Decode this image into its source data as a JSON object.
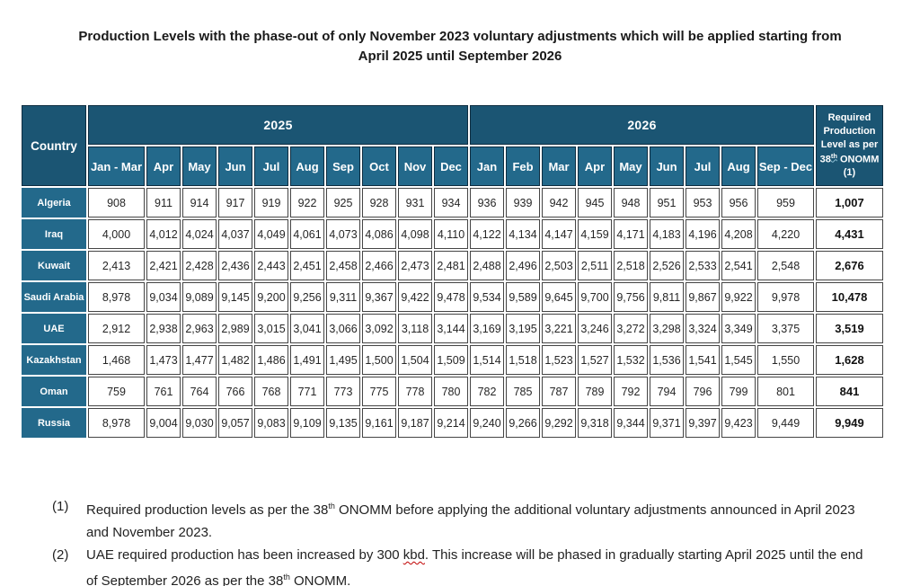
{
  "title": {
    "line1": "Production Levels with the phase-out of only November 2023 voluntary adjustments which will be applied starting from",
    "line2": "April 2025 until September 2026"
  },
  "table": {
    "country_header": "Country",
    "year_2025": "2025",
    "year_2026": "2026",
    "required_header": {
      "text_before_sup": "Required Production Level as per 38",
      "sup": "th",
      "text_after_sup": " ONOMM (1)"
    },
    "months_2025": [
      "Jan - Mar",
      "Apr",
      "May",
      "Jun",
      "Jul",
      "Aug",
      "Sep",
      "Oct",
      "Nov",
      "Dec"
    ],
    "months_2026": [
      "Jan",
      "Feb",
      "Mar",
      "Apr",
      "May",
      "Jun",
      "Jul",
      "Aug",
      "Sep - Dec"
    ],
    "rows": [
      {
        "country": "Algeria",
        "values_2025": [
          "908",
          "911",
          "914",
          "917",
          "919",
          "922",
          "925",
          "928",
          "931",
          "934"
        ],
        "values_2026": [
          "936",
          "939",
          "942",
          "945",
          "948",
          "951",
          "953",
          "956",
          "959"
        ],
        "required": "1,007"
      },
      {
        "country": "Iraq",
        "values_2025": [
          "4,000",
          "4,012",
          "4,024",
          "4,037",
          "4,049",
          "4,061",
          "4,073",
          "4,086",
          "4,098",
          "4,110"
        ],
        "values_2026": [
          "4,122",
          "4,134",
          "4,147",
          "4,159",
          "4,171",
          "4,183",
          "4,196",
          "4,208",
          "4,220"
        ],
        "required": "4,431"
      },
      {
        "country": "Kuwait",
        "values_2025": [
          "2,413",
          "2,421",
          "2,428",
          "2,436",
          "2,443",
          "2,451",
          "2,458",
          "2,466",
          "2,473",
          "2,481"
        ],
        "values_2026": [
          "2,488",
          "2,496",
          "2,503",
          "2,511",
          "2,518",
          "2,526",
          "2,533",
          "2,541",
          "2,548"
        ],
        "required": "2,676"
      },
      {
        "country": "Saudi Arabia",
        "values_2025": [
          "8,978",
          "9,034",
          "9,089",
          "9,145",
          "9,200",
          "9,256",
          "9,311",
          "9,367",
          "9,422",
          "9,478"
        ],
        "values_2026": [
          "9,534",
          "9,589",
          "9,645",
          "9,700",
          "9,756",
          "9,811",
          "9,867",
          "9,922",
          "9,978"
        ],
        "required": "10,478"
      },
      {
        "country": "UAE",
        "values_2025": [
          "2,912",
          "2,938",
          "2,963",
          "2,989",
          "3,015",
          "3,041",
          "3,066",
          "3,092",
          "3,118",
          "3,144"
        ],
        "values_2026": [
          "3,169",
          "3,195",
          "3,221",
          "3,246",
          "3,272",
          "3,298",
          "3,324",
          "3,349",
          "3,375"
        ],
        "required": "3,519"
      },
      {
        "country": "Kazakhstan",
        "values_2025": [
          "1,468",
          "1,473",
          "1,477",
          "1,482",
          "1,486",
          "1,491",
          "1,495",
          "1,500",
          "1,504",
          "1,509"
        ],
        "values_2026": [
          "1,514",
          "1,518",
          "1,523",
          "1,527",
          "1,532",
          "1,536",
          "1,541",
          "1,545",
          "1,550"
        ],
        "required": "1,628"
      },
      {
        "country": "Oman",
        "values_2025": [
          "759",
          "761",
          "764",
          "766",
          "768",
          "771",
          "773",
          "775",
          "778",
          "780"
        ],
        "values_2026": [
          "782",
          "785",
          "787",
          "789",
          "792",
          "794",
          "796",
          "799",
          "801"
        ],
        "required": "841"
      },
      {
        "country": "Russia",
        "values_2025": [
          "8,978",
          "9,004",
          "9,030",
          "9,057",
          "9,083",
          "9,109",
          "9,135",
          "9,161",
          "9,187",
          "9,214"
        ],
        "values_2026": [
          "9,240",
          "9,266",
          "9,292",
          "9,318",
          "9,344",
          "9,371",
          "9,397",
          "9,423",
          "9,449"
        ],
        "required": "9,949"
      }
    ]
  },
  "footnotes": [
    {
      "marker": "(1)",
      "segments": [
        {
          "text": "Required production levels as per the 38"
        },
        {
          "sup": "th"
        },
        {
          "text": " ONOMM before applying the additional voluntary adjustments announced in April 2023 and November 2023."
        }
      ]
    },
    {
      "marker": "(2)",
      "segments": [
        {
          "text": "UAE required production has been increased by 300 "
        },
        {
          "text": "kbd",
          "squiggle": true
        },
        {
          "text": ". This increase will be phased in gradually starting April 2025 until the end of September 2026 as per the 38"
        },
        {
          "sup": "th"
        },
        {
          "text": " ONOMM."
        }
      ]
    }
  ],
  "colors": {
    "header-dark": "#1b5573",
    "header-light": "#23698b",
    "header-border": "#0e2d41",
    "cell-border": "#454545",
    "text-dark": "#262626",
    "squiggle-red": "#c00000",
    "squiggle-blue": "#8fc1d6"
  },
  "layout_widths": {
    "label_col": 72,
    "wide_month_col": 63,
    "month_col": 38,
    "required_col": 75
  }
}
